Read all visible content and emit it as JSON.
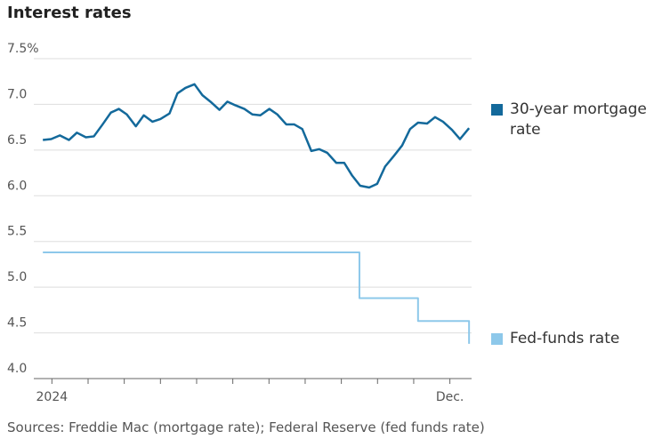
{
  "chart_data": {
    "type": "line",
    "title": "Interest rates",
    "source": "Sources: Freddie Mac (mortgage rate); Federal Reserve (fed funds rate)",
    "xlim": [
      -0.5,
      11.6
    ],
    "xticks": [
      0,
      1,
      2,
      3,
      4,
      5,
      6,
      7,
      8,
      9,
      10,
      11
    ],
    "xlabels": [
      {
        "value": 0,
        "label": "2024"
      },
      {
        "value": 11,
        "label": "Dec."
      }
    ],
    "ylim": [
      4.0,
      7.5
    ],
    "yticks": [
      {
        "value": 4.0,
        "label": "4.0"
      },
      4.5,
      {
        "value": 5.0,
        "label": "5.0"
      },
      5.5,
      {
        "value": 6.0,
        "label": "6.0"
      },
      6.5,
      {
        "value": 7.0,
        "label": "7.0"
      },
      {
        "value": 7.5,
        "label": "7.5%"
      }
    ],
    "grid": true,
    "series": [
      {
        "name": "30-year mortgage rate",
        "color": "#13699b",
        "x": [
          -0.25,
          -0.02,
          0.22,
          0.47,
          0.69,
          0.94,
          1.16,
          1.4,
          1.63,
          1.85,
          2.07,
          2.32,
          2.54,
          2.78,
          3.0,
          3.25,
          3.47,
          3.69,
          3.94,
          4.16,
          4.38,
          4.63,
          4.85,
          5.07,
          5.32,
          5.54,
          5.76,
          6.01,
          6.23,
          6.48,
          6.7,
          6.92,
          7.17,
          7.39,
          7.61,
          7.86,
          8.08,
          8.3,
          8.52,
          8.77,
          8.99,
          9.21,
          9.46,
          9.68,
          9.9,
          10.12,
          10.37,
          10.59,
          10.81,
          11.06,
          11.28,
          11.53
        ],
        "values": [
          6.61,
          6.62,
          6.66,
          6.61,
          6.69,
          6.64,
          6.65,
          6.78,
          6.91,
          6.95,
          6.89,
          6.76,
          6.88,
          6.81,
          6.84,
          6.9,
          7.12,
          7.18,
          7.22,
          7.1,
          7.03,
          6.94,
          7.03,
          6.99,
          6.95,
          6.89,
          6.88,
          6.95,
          6.89,
          6.78,
          6.78,
          6.73,
          6.49,
          6.51,
          6.47,
          6.36,
          6.36,
          6.22,
          6.11,
          6.09,
          6.13,
          6.32,
          6.44,
          6.55,
          6.73,
          6.8,
          6.79,
          6.86,
          6.81,
          6.72,
          6.62,
          6.74
        ]
      },
      {
        "name": "Fed-funds rate",
        "color": "#8dc8ea",
        "x": [
          -0.25,
          8.5,
          8.5,
          10.12,
          10.12,
          11.53,
          11.53
        ],
        "values": [
          5.38,
          5.38,
          4.88,
          4.88,
          4.63,
          4.63,
          4.38
        ]
      }
    ]
  }
}
